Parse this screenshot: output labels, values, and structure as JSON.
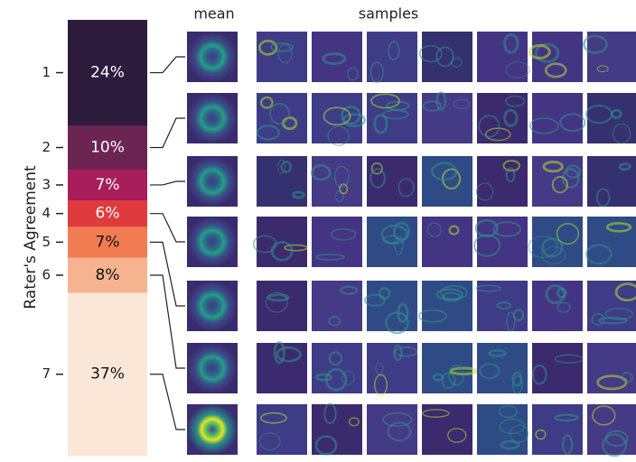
{
  "chart_data": {
    "type": "stacked-bar",
    "ylabel": "Rater's Agreement",
    "column_titles": [
      "mean",
      "samples"
    ],
    "series": [
      {
        "name": "1",
        "color": "#2e1c3d",
        "values": [
          24
        ],
        "value_labels": [
          "24%"
        ]
      },
      {
        "name": "2",
        "color": "#6c2553",
        "values": [
          10
        ],
        "value_labels": [
          "10%"
        ]
      },
      {
        "name": "3",
        "color": "#a81e5a",
        "values": [
          7
        ],
        "value_labels": [
          "7%"
        ]
      },
      {
        "name": "4",
        "color": "#df3b3f",
        "values": [
          6
        ],
        "value_labels": [
          "6%"
        ]
      },
      {
        "name": "5",
        "color": "#f17c52",
        "values": [
          7
        ],
        "value_labels": [
          "7%"
        ]
      },
      {
        "name": "6",
        "color": "#f5b38f",
        "values": [
          8
        ],
        "value_labels": [
          "8%"
        ]
      },
      {
        "name": "7",
        "color": "#fbe7d8",
        "values": [
          37
        ],
        "value_labels": [
          "37%"
        ]
      }
    ]
  }
}
